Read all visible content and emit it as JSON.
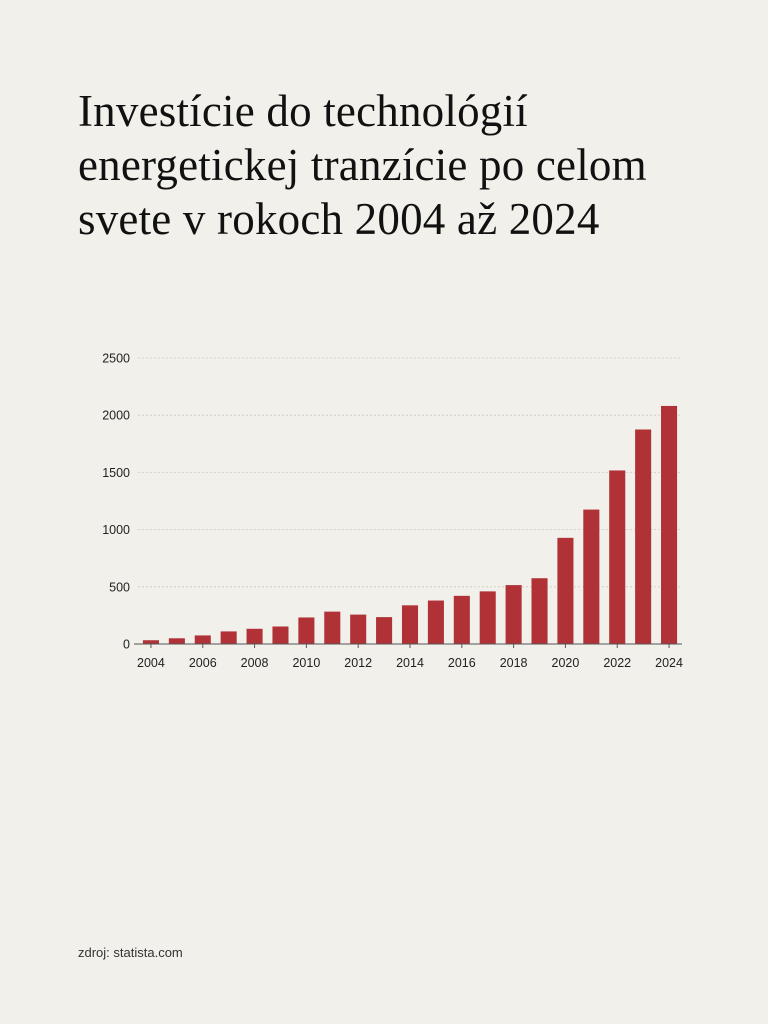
{
  "title": "Investície do technológií energetickej tranzície po celom svete v rokoch 2004 až 2024",
  "source": "zdroj: statista.com",
  "colors": {
    "background": "#f2f0eb",
    "bar": "#b03237",
    "grid": "#cfcac2",
    "axis": "#555555",
    "text": "#222222"
  },
  "chart_data": {
    "type": "bar",
    "title": "Investície do technológií energetickej tranzície po celom svete v rokoch 2004 až 2024",
    "xlabel": "",
    "ylabel": "",
    "ylim": [
      0,
      2500
    ],
    "yticks": [
      0,
      500,
      1000,
      1500,
      2000,
      2500
    ],
    "xtick_labels": [
      "2004",
      "2006",
      "2008",
      "2010",
      "2012",
      "2014",
      "2016",
      "2018",
      "2020",
      "2022",
      "2024"
    ],
    "grid": true,
    "categories": [
      "2004",
      "2005",
      "2006",
      "2007",
      "2008",
      "2009",
      "2010",
      "2011",
      "2012",
      "2013",
      "2014",
      "2015",
      "2016",
      "2017",
      "2018",
      "2019",
      "2020",
      "2021",
      "2022",
      "2023",
      "2024"
    ],
    "values": [
      33,
      50,
      75,
      110,
      133,
      153,
      232,
      283,
      257,
      235,
      338,
      380,
      421,
      460,
      515,
      575,
      928,
      1175,
      1517,
      1875,
      2081
    ]
  }
}
